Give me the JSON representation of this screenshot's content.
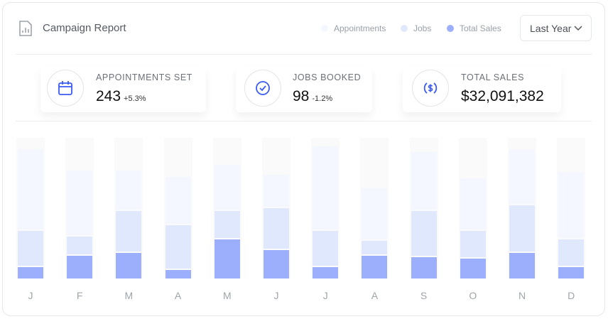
{
  "header": {
    "title": "Campaign Report",
    "icon": "report-chart-icon",
    "dropdown": {
      "selected": "Last Year",
      "icon": "chevron-down-icon"
    }
  },
  "stats": [
    {
      "label": "APPOINTMENTS SET",
      "value": "243",
      "change": "+5.3%",
      "icon": "calendar-icon"
    },
    {
      "label": "JOBS BOOKED",
      "value": "98",
      "change": "-1.2%",
      "icon": "check-circle-icon"
    },
    {
      "label": "TOTAL SALES",
      "value": "$32,091,382",
      "change": "",
      "icon": "dollar-circle-icon"
    }
  ],
  "colors": {
    "appointments": "#f4f7ff",
    "jobs": "#dfe8fd",
    "total_sales": "#9caffc",
    "track": "#fafafa",
    "accent": "#3b5bf5"
  },
  "chart_data": {
    "type": "bar",
    "stacked": true,
    "grid": false,
    "legend_placement": "top-right",
    "title": "",
    "xlabel": "",
    "ylabel": "",
    "ylim": [
      0,
      100
    ],
    "categories": [
      "J",
      "F",
      "M",
      "A",
      "M",
      "J",
      "J",
      "A",
      "S",
      "O",
      "N",
      "D"
    ],
    "series": [
      {
        "name": "Total Sales",
        "values": [
          9,
          17,
          19,
          7,
          29,
          21,
          9,
          17,
          16,
          15,
          19,
          9
        ]
      },
      {
        "name": "Jobs",
        "values": [
          26,
          14,
          30,
          32,
          20,
          30,
          26,
          11,
          33,
          20,
          34,
          20
        ]
      },
      {
        "name": "Appointments",
        "values": [
          58,
          47,
          29,
          34,
          33,
          24,
          60,
          37,
          42,
          37,
          40,
          48
        ]
      }
    ]
  }
}
